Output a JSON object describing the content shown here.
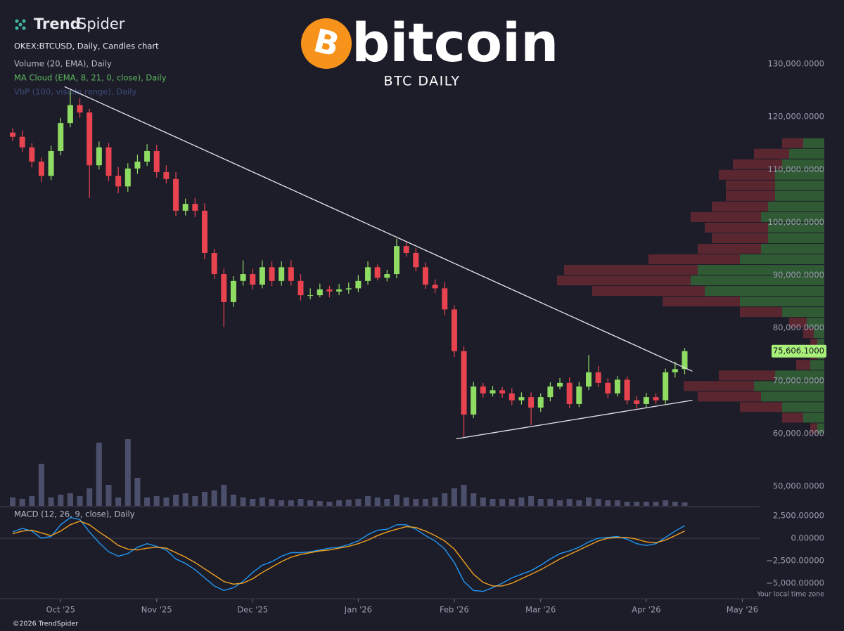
{
  "header": {
    "brand_a": "Trend",
    "brand_b": "Spider",
    "logo_mark": "B",
    "logo_word": "bitcoin",
    "subtitle": "BTC DAILY"
  },
  "footer": {
    "copyright": "©2026 TrendSpider",
    "timezone": "Your local time zone"
  },
  "chart_data": [
    {
      "type": "candlestick",
      "title": "OKEX:BTCUSD, Daily, Candles chart",
      "indicators": [
        "Volume (20, EMA), Daily",
        "MA Cloud (EMA, 8, 21, 0, close), Daily",
        "VbP (100, visible range), Daily"
      ],
      "categories": [
        null,
        null,
        null,
        null,
        null,
        "Oct '25",
        null,
        null,
        null,
        null,
        null,
        null,
        null,
        null,
        null,
        "Nov '25",
        null,
        null,
        null,
        null,
        null,
        null,
        null,
        null,
        null,
        "Dec '25",
        null,
        null,
        null,
        null,
        null,
        null,
        null,
        null,
        null,
        null,
        "Jan '26",
        null,
        null,
        null,
        null,
        null,
        null,
        null,
        null,
        null,
        "Feb '26",
        null,
        null,
        null,
        null,
        null,
        null,
        null,
        null,
        "Mar '26",
        null,
        null,
        null,
        null,
        null,
        null,
        null,
        null,
        null,
        null,
        "Apr '26",
        null,
        null,
        null,
        null,
        null,
        null,
        null,
        null,
        null,
        "May '26"
      ],
      "open": [
        117000,
        116200,
        114200,
        111500,
        108800,
        113500,
        118800,
        122200,
        120800,
        110800,
        114200,
        108800,
        106800,
        110200,
        111500,
        113500,
        109500,
        108200,
        102200,
        103500,
        102200,
        94200,
        90200,
        84900,
        88900,
        90200,
        88200,
        91500,
        88900,
        91500,
        88900,
        86200,
        86200,
        87300,
        86900,
        87300,
        87500,
        88900,
        91500,
        89500,
        90200,
        95500,
        94200,
        91500,
        88200,
        87500,
        83500,
        75600,
        63600,
        68900,
        67600,
        68200,
        67600,
        66300,
        66900,
        64900,
        66900,
        68900,
        69600,
        65600,
        68900,
        71600,
        69600,
        67600,
        70200,
        66300,
        65600,
        66900,
        66300,
        71600,
        72200,
        null,
        null,
        null,
        null,
        null,
        null
      ],
      "high": [
        117800,
        117400,
        115000,
        112300,
        114500,
        119800,
        124900,
        123500,
        121500,
        115300,
        115000,
        110500,
        111200,
        112800,
        114800,
        114700,
        110800,
        109500,
        104500,
        104600,
        103600,
        95000,
        91200,
        89800,
        92800,
        91200,
        92800,
        92600,
        92600,
        92800,
        90200,
        87500,
        88400,
        88000,
        88300,
        88600,
        90000,
        92600,
        92000,
        91000,
        96900,
        96200,
        95100,
        92400,
        89200,
        88700,
        84300,
        76500,
        69800,
        69600,
        69000,
        68800,
        68600,
        67800,
        67800,
        67600,
        69700,
        70500,
        70600,
        69800,
        74900,
        72800,
        70500,
        70900,
        70800,
        67100,
        67700,
        67600,
        72300,
        73600,
        76200,
        null,
        null,
        null,
        null,
        null,
        null
      ],
      "low": [
        115400,
        113300,
        110400,
        107600,
        108000,
        112700,
        118000,
        119800,
        104600,
        110000,
        107800,
        105500,
        105800,
        109200,
        110700,
        108500,
        107400,
        101200,
        101300,
        101000,
        93000,
        89300,
        80200,
        84000,
        88000,
        87300,
        87500,
        87900,
        88000,
        88000,
        85200,
        85400,
        85800,
        85800,
        86200,
        86500,
        86800,
        88200,
        89000,
        88800,
        89400,
        93500,
        90700,
        87400,
        86600,
        82400,
        74500,
        59300,
        62900,
        66800,
        67000,
        66800,
        65400,
        65500,
        61600,
        64100,
        66100,
        68400,
        64800,
        65000,
        68200,
        68800,
        66700,
        67000,
        65500,
        64700,
        64900,
        65600,
        65600,
        70600,
        71200,
        null,
        null,
        null,
        null,
        null,
        null
      ],
      "close": [
        116200,
        114200,
        111500,
        108800,
        113500,
        118800,
        122200,
        120800,
        110800,
        114200,
        108800,
        106800,
        110200,
        111500,
        113500,
        109500,
        108200,
        102200,
        103500,
        102200,
        94200,
        90200,
        84900,
        88900,
        90200,
        88200,
        91500,
        88900,
        91500,
        88900,
        86200,
        86200,
        87300,
        86900,
        87300,
        87500,
        88900,
        91500,
        89500,
        90200,
        95500,
        94200,
        91500,
        88200,
        87500,
        83500,
        75600,
        63600,
        68900,
        67600,
        68200,
        67600,
        66300,
        66900,
        64900,
        66900,
        68900,
        69600,
        65600,
        68900,
        71600,
        69600,
        67600,
        70200,
        66300,
        65600,
        66900,
        66300,
        71600,
        72200,
        75606.1,
        null,
        null,
        null,
        null,
        null,
        null
      ],
      "up_color": "#8fdc62",
      "down_color": "#e8434f",
      "ylim": [
        46290,
        142110
      ],
      "yticks": [
        {
          "value": 50000,
          "label": "50,000.0000"
        },
        {
          "value": 60000,
          "label": "60,000.0000"
        },
        {
          "value": 70000,
          "label": "70,000.0000"
        },
        {
          "value": 80000,
          "label": "80,000.0000"
        },
        {
          "value": 90000,
          "label": "90,000.0000"
        },
        {
          "value": 100000,
          "label": "100,000.0000"
        },
        {
          "value": 110000,
          "label": "110,000.0000"
        },
        {
          "value": 120000,
          "label": "120,000.0000"
        },
        {
          "value": 130000,
          "label": "130,000.0000"
        }
      ],
      "last_price": {
        "value": 75606.1,
        "label": "75,606.1000"
      },
      "trendlines": [
        {
          "x": [
            5.4,
            70.8
          ],
          "y": [
            125700,
            71800
          ]
        },
        {
          "x": [
            46.2,
            70.8
          ],
          "y": [
            59000,
            66300
          ]
        }
      ],
      "volume": {
        "color": "#4b4f6b",
        "vlim": [
          0,
          100
        ],
        "values": [
          12,
          10,
          14,
          60,
          12,
          16,
          18,
          14,
          25,
          90,
          30,
          12,
          95,
          40,
          12,
          14,
          12,
          16,
          18,
          14,
          20,
          22,
          30,
          16,
          12,
          10,
          12,
          10,
          8,
          8,
          10,
          8,
          7,
          6,
          8,
          9,
          10,
          14,
          12,
          10,
          16,
          12,
          10,
          10,
          12,
          18,
          25,
          30,
          18,
          12,
          10,
          10,
          10,
          12,
          14,
          10,
          10,
          8,
          10,
          8,
          12,
          10,
          8,
          8,
          6,
          6,
          6,
          6,
          8,
          6,
          5,
          null,
          null,
          null,
          null,
          null,
          null
        ]
      },
      "vbp": {
        "up_color": "#2f5a34",
        "down_color": "#5a2630",
        "bins": [
          60000,
          62000,
          64000,
          66000,
          68000,
          70000,
          72000,
          74000,
          76000,
          78000,
          80000,
          82000,
          84000,
          86000,
          88000,
          90000,
          92000,
          94000,
          96000,
          98000,
          100000,
          102000,
          104000,
          106000,
          108000,
          110000,
          112000,
          114000,
          116000
        ],
        "up": [
          10,
          30,
          60,
          90,
          100,
          70,
          20,
          10,
          10,
          15,
          25,
          60,
          120,
          170,
          190,
          180,
          120,
          90,
          80,
          80,
          90,
          80,
          70,
          70,
          70,
          60,
          50,
          30
        ],
        "down": [
          10,
          30,
          60,
          90,
          100,
          80,
          20,
          10,
          10,
          15,
          25,
          60,
          110,
          160,
          190,
          190,
          130,
          90,
          80,
          90,
          100,
          80,
          70,
          70,
          80,
          70,
          50,
          30
        ]
      }
    },
    {
      "type": "line",
      "title": "MACD (12, 26, 9, close), Daily",
      "series": [
        {
          "name": "MACD",
          "color": "#2196f3",
          "values": [
            700,
            1100,
            800,
            0,
            200,
            1500,
            2300,
            2100,
            700,
            -500,
            -1500,
            -2000,
            -1700,
            -1000,
            -600,
            -900,
            -1300,
            -2300,
            -2800,
            -3500,
            -4400,
            -5300,
            -5800,
            -5500,
            -4800,
            -3800,
            -3000,
            -2600,
            -2000,
            -1600,
            -1600,
            -1500,
            -1300,
            -1100,
            -1000,
            -700,
            -300,
            400,
            900,
            1000,
            1500,
            1500,
            1000,
            300,
            -300,
            -1200,
            -2700,
            -4800,
            -5800,
            -5900,
            -5500,
            -5000,
            -4400,
            -4000,
            -3600,
            -3000,
            -2300,
            -1700,
            -1400,
            -1000,
            -400,
            0,
            100,
            200,
            -100,
            -600,
            -800,
            -600,
            100,
            800,
            1400,
            null,
            null,
            null,
            null,
            null,
            null
          ]
        },
        {
          "name": "Signal",
          "color": "#f0a020",
          "values": [
            500,
            800,
            900,
            600,
            300,
            800,
            1500,
            1900,
            1500,
            700,
            0,
            -800,
            -1200,
            -1300,
            -1100,
            -1000,
            -1100,
            -1600,
            -2100,
            -2700,
            -3400,
            -4100,
            -4800,
            -5100,
            -5000,
            -4500,
            -3800,
            -3200,
            -2600,
            -2100,
            -1800,
            -1600,
            -1400,
            -1300,
            -1100,
            -900,
            -600,
            -200,
            300,
            700,
            1000,
            1300,
            1200,
            800,
            300,
            -300,
            -1200,
            -2600,
            -4000,
            -4900,
            -5300,
            -5300,
            -5000,
            -4500,
            -4000,
            -3500,
            -2900,
            -2300,
            -1800,
            -1300,
            -800,
            -300,
            0,
            100,
            100,
            -100,
            -400,
            -500,
            -200,
            300,
            800,
            null,
            null,
            null,
            null,
            null,
            null
          ]
        }
      ],
      "ylim": [
        -6560,
        3440
      ],
      "yticks": [
        {
          "value": -5000,
          "label": "−5,000.00000"
        },
        {
          "value": -2500,
          "label": "−2,500.00000"
        },
        {
          "value": 0,
          "label": "0.00000"
        },
        {
          "value": 2500,
          "label": "2,500.00000"
        }
      ],
      "zero_line": true
    }
  ]
}
